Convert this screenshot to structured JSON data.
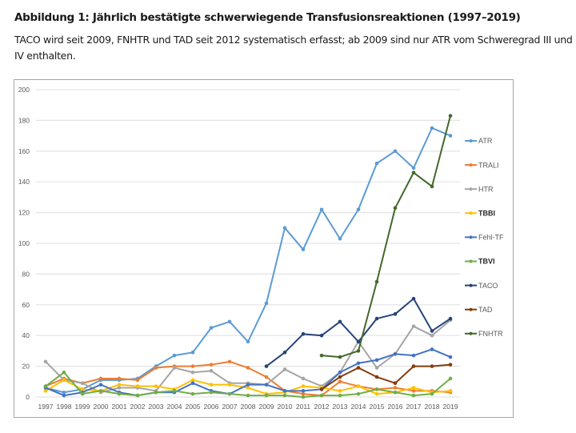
{
  "header": {
    "title": "Abbildung 1: Jährlich bestätigte schwerwiegende Transfusionsreaktionen (1997–2019)",
    "subtitle": "TACO wird seit 2009, FNHTR und TAD seit 2012 systematisch erfasst; ab 2009 sind nur ATR vom Schweregrad III und IV enthalten."
  },
  "chart_data": {
    "type": "line",
    "title": "Abbildung 1: Jährlich bestätigte schwerwiegende Transfusionsreaktionen (1997–2019)",
    "xlabel": "",
    "ylabel": "",
    "ylim": [
      0,
      200
    ],
    "yticks": [
      "0",
      "20",
      "40",
      "60",
      "80",
      "100",
      "120",
      "140",
      "160",
      "180",
      "200"
    ],
    "grid": true,
    "legend_position": "right",
    "x": [
      "1997",
      "1998",
      "1999",
      "2000",
      "2001",
      "2002",
      "2003",
      "2004",
      "2005",
      "2006",
      "2007",
      "2008",
      "2009",
      "2010",
      "2011",
      "2012",
      "2013",
      "2014",
      "2015",
      "2016",
      "2017",
      "2018",
      "2019"
    ],
    "series": [
      {
        "name": "ATR",
        "color": "#5b9bd5",
        "bold": false,
        "values": [
          6,
          3,
          5,
          11,
          11,
          12,
          20,
          27,
          29,
          45,
          49,
          36,
          61,
          110,
          96,
          122,
          103,
          122,
          152,
          160,
          149,
          175,
          170
        ]
      },
      {
        "name": "TRALI",
        "color": "#ed7d31",
        "bold": false,
        "values": [
          7,
          12,
          9,
          12,
          12,
          11,
          19,
          20,
          20,
          21,
          23,
          19,
          13,
          4,
          2,
          1,
          10,
          7,
          5,
          6,
          4,
          4,
          3
        ]
      },
      {
        "name": "HTR",
        "color": "#a5a5a5",
        "bold": false,
        "values": [
          23,
          11,
          9,
          3,
          6,
          6,
          4,
          19,
          16,
          17,
          9,
          9,
          8,
          18,
          12,
          7,
          16,
          36,
          19,
          28,
          46,
          40,
          50
        ]
      },
      {
        "name": "TBBI",
        "color": "#ffc000",
        "bold": true,
        "values": [
          4,
          11,
          5,
          4,
          8,
          7,
          7,
          5,
          11,
          8,
          8,
          6,
          2,
          3,
          7,
          6,
          4,
          7,
          2,
          3,
          6,
          3,
          4
        ]
      },
      {
        "name": "Fehl-TF",
        "color": "#4472c4",
        "bold": false,
        "values": [
          6,
          1,
          3,
          8,
          3,
          1,
          3,
          3,
          9,
          4,
          2,
          8,
          8,
          4,
          4,
          5,
          16,
          22,
          24,
          28,
          27,
          31,
          26
        ]
      },
      {
        "name": "TBVI",
        "color": "#70ad47",
        "bold": true,
        "values": [
          7,
          16,
          2,
          4,
          2,
          1,
          3,
          4,
          2,
          3,
          2,
          1,
          1,
          1,
          0,
          1,
          1,
          2,
          5,
          3,
          1,
          2,
          12
        ]
      },
      {
        "name": "TACO",
        "color": "#264478",
        "bold": false,
        "values": [
          null,
          null,
          null,
          null,
          null,
          null,
          null,
          null,
          null,
          null,
          null,
          null,
          20,
          29,
          41,
          40,
          49,
          36,
          51,
          54,
          64,
          43,
          51
        ]
      },
      {
        "name": "TAD",
        "color": "#843c0c",
        "bold": false,
        "values": [
          null,
          null,
          null,
          null,
          null,
          null,
          null,
          null,
          null,
          null,
          null,
          null,
          null,
          null,
          null,
          5,
          13,
          19,
          13,
          9,
          20,
          20,
          21
        ]
      },
      {
        "name": "FNHTR",
        "color": "#43682b",
        "bold": false,
        "values": [
          null,
          null,
          null,
          null,
          null,
          null,
          null,
          null,
          null,
          null,
          null,
          null,
          null,
          null,
          null,
          27,
          26,
          30,
          75,
          123,
          146,
          137,
          183
        ]
      }
    ]
  }
}
